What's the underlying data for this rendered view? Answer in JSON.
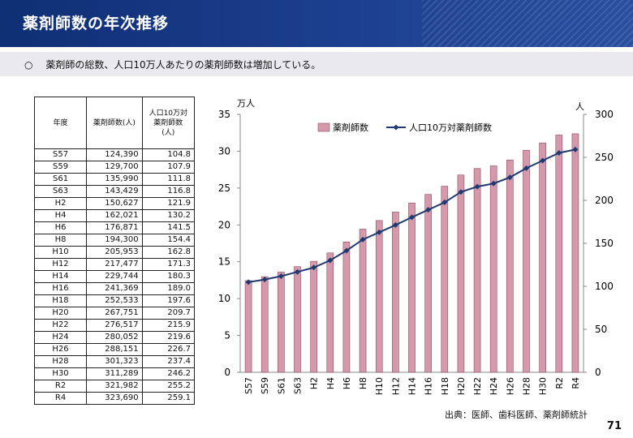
{
  "header": {
    "title": "薬剤師数の年次推移"
  },
  "subtitle": {
    "bullet": "○",
    "text": "薬剤師の総数、人口10万人あたりの薬剤師数は増加している。"
  },
  "table": {
    "headers": [
      "年度",
      "薬剤師数(人)",
      "人口10万対\n薬剤師数\n(人)"
    ],
    "rows": [
      [
        "S57",
        "124,390",
        "104.8"
      ],
      [
        "S59",
        "129,700",
        "107.9"
      ],
      [
        "S61",
        "135,990",
        "111.8"
      ],
      [
        "S63",
        "143,429",
        "116.8"
      ],
      [
        "H2",
        "150,627",
        "121.9"
      ],
      [
        "H4",
        "162,021",
        "130.2"
      ],
      [
        "H6",
        "176,871",
        "141.5"
      ],
      [
        "H8",
        "194,300",
        "154.4"
      ],
      [
        "H10",
        "205,953",
        "162.8"
      ],
      [
        "H12",
        "217,477",
        "171.3"
      ],
      [
        "H14",
        "229,744",
        "180.3"
      ],
      [
        "H16",
        "241,369",
        "189.0"
      ],
      [
        "H18",
        "252,533",
        "197.6"
      ],
      [
        "H20",
        "267,751",
        "209.7"
      ],
      [
        "H22",
        "276,517",
        "215.9"
      ],
      [
        "H24",
        "280,052",
        "219.6"
      ],
      [
        "H26",
        "288,151",
        "226.7"
      ],
      [
        "H28",
        "301,323",
        "237.4"
      ],
      [
        "H30",
        "311,289",
        "246.2"
      ],
      [
        "R2",
        "321,982",
        "255.2"
      ],
      [
        "R4",
        "323,690",
        "259.1"
      ]
    ]
  },
  "chart_data": {
    "type": "bar",
    "categories": [
      "S57",
      "S59",
      "S61",
      "S63",
      "H2",
      "H4",
      "H6",
      "H8",
      "H10",
      "H12",
      "H14",
      "H16",
      "H18",
      "H20",
      "H22",
      "H24",
      "H26",
      "H28",
      "H30",
      "R2",
      "R4"
    ],
    "series": [
      {
        "name": "薬剤師数",
        "type": "bar",
        "axis": "left",
        "values": [
          12.439,
          12.97,
          13.599,
          14.343,
          15.063,
          16.202,
          17.687,
          19.43,
          20.595,
          21.748,
          22.974,
          24.137,
          25.253,
          26.775,
          27.652,
          28.005,
          28.815,
          30.132,
          31.129,
          32.198,
          32.369
        ]
      },
      {
        "name": "人口10万対薬剤師数",
        "type": "line",
        "axis": "right",
        "values": [
          104.8,
          107.9,
          111.8,
          116.8,
          121.9,
          130.2,
          141.5,
          154.4,
          162.8,
          171.3,
          180.3,
          189.0,
          197.6,
          209.7,
          215.9,
          219.6,
          226.7,
          237.4,
          246.2,
          255.2,
          259.1
        ]
      }
    ],
    "y_left": {
      "label": "万人",
      "min": 0,
      "max": 35,
      "ticks": [
        "0",
        "5",
        "10",
        "15",
        "20",
        "25",
        "30",
        "35"
      ]
    },
    "y_right": {
      "label": "人",
      "min": 0,
      "max": 300,
      "ticks": [
        "0",
        "50",
        "100",
        "150",
        "200",
        "250",
        "300"
      ]
    },
    "legend_position": "top",
    "colors": {
      "bar_fill": "#d49aab",
      "bar_stroke": "#8a4a5c",
      "line": "#1f3a73"
    }
  },
  "source": "出典：医師、歯科医師、薬剤師統計",
  "page_number": "71"
}
